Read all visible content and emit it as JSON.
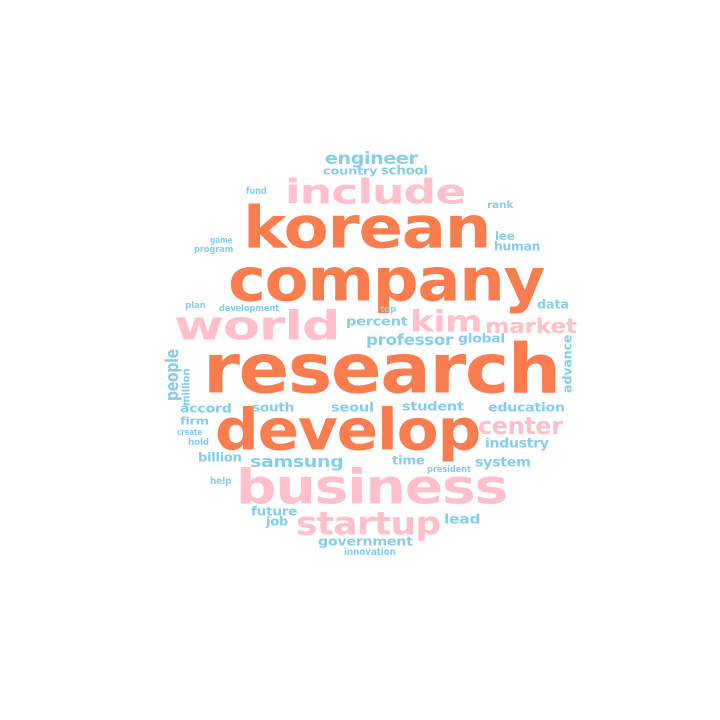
{
  "colors": {
    "orange": "#F97D4E",
    "pink": "#FFC0CB",
    "blue": "#87CEEB"
  },
  "words": [
    {
      "text": "company",
      "color": "orange"
    },
    {
      "text": "research",
      "color": "orange"
    },
    {
      "text": "korean",
      "color": "orange"
    },
    {
      "text": "develop",
      "color": "orange"
    },
    {
      "text": "business",
      "color": "pink"
    },
    {
      "text": "include",
      "color": "pink"
    },
    {
      "text": "world",
      "color": "pink"
    },
    {
      "text": "startup",
      "color": "pink"
    },
    {
      "text": "kim",
      "color": "pink"
    },
    {
      "text": "market",
      "color": "pink"
    },
    {
      "text": "center",
      "color": "pink"
    },
    {
      "text": "engineer",
      "color": "blue"
    },
    {
      "text": "country",
      "color": "blue"
    },
    {
      "text": "school",
      "color": "blue"
    },
    {
      "text": "fund",
      "color": "blue"
    },
    {
      "text": "rank",
      "color": "blue"
    },
    {
      "text": "game",
      "color": "blue"
    },
    {
      "text": "program",
      "color": "blue"
    },
    {
      "text": "lee",
      "color": "blue"
    },
    {
      "text": "human",
      "color": "blue"
    },
    {
      "text": "plan",
      "color": "blue"
    },
    {
      "text": "development",
      "color": "blue"
    },
    {
      "text": "top",
      "color": "blue"
    },
    {
      "text": "data",
      "color": "blue"
    },
    {
      "text": "percent",
      "color": "blue"
    },
    {
      "text": "professor",
      "color": "blue"
    },
    {
      "text": "global",
      "color": "blue"
    },
    {
      "text": "people",
      "color": "blue"
    },
    {
      "text": "million",
      "color": "blue"
    },
    {
      "text": "advance",
      "color": "blue"
    },
    {
      "text": "accord",
      "color": "blue"
    },
    {
      "text": "south",
      "color": "blue"
    },
    {
      "text": "seoul",
      "color": "blue"
    },
    {
      "text": "student",
      "color": "blue"
    },
    {
      "text": "education",
      "color": "blue"
    },
    {
      "text": "firm",
      "color": "blue"
    },
    {
      "text": "create",
      "color": "blue"
    },
    {
      "text": "hold",
      "color": "blue"
    },
    {
      "text": "industry",
      "color": "blue"
    },
    {
      "text": "billion",
      "color": "blue"
    },
    {
      "text": "samsung",
      "color": "blue"
    },
    {
      "text": "time",
      "color": "blue"
    },
    {
      "text": "system",
      "color": "blue"
    },
    {
      "text": "president",
      "color": "blue"
    },
    {
      "text": "help",
      "color": "blue"
    },
    {
      "text": "future",
      "color": "blue"
    },
    {
      "text": "job",
      "color": "blue"
    },
    {
      "text": "lead",
      "color": "blue"
    },
    {
      "text": "government",
      "color": "blue"
    },
    {
      "text": "innovation",
      "color": "blue"
    }
  ]
}
